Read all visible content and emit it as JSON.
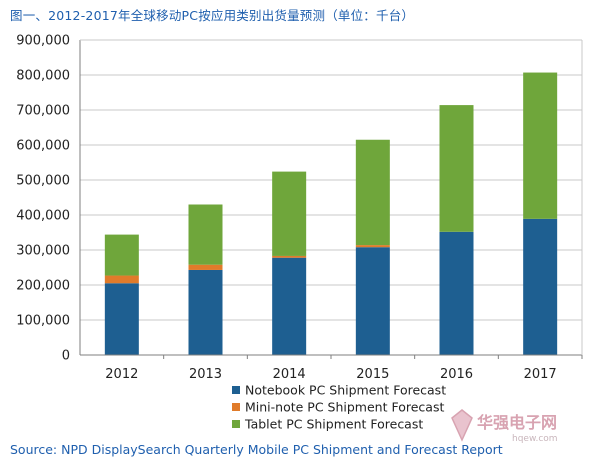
{
  "title": "图一、2012-2017年全球移动PC按应用类别出货量预测（单位：千台）",
  "source": "Source: NPD DisplaySearch Quarterly Mobile PC Shipment and Forecast Report",
  "watermark": {
    "name": "华强电子网",
    "url": "hqew.com"
  },
  "colors": {
    "notebook": "#1e5f91",
    "mininote": "#e07b2a",
    "tablet": "#6fa63b",
    "grid": "#c8c8c8",
    "axis": "#7f7f7f",
    "title": "#1f5fae"
  },
  "chart_data": {
    "type": "bar",
    "stacked": true,
    "categories": [
      "2012",
      "2013",
      "2014",
      "2015",
      "2016",
      "2017"
    ],
    "series": [
      {
        "name": "Notebook PC Shipment Forecast",
        "values": [
          205000,
          243000,
          278000,
          308000,
          352000,
          389000
        ]
      },
      {
        "name": "Mini-note PC Shipment Forecast",
        "values": [
          22000,
          15000,
          5000,
          6000,
          0,
          0
        ]
      },
      {
        "name": "Tablet PC Shipment Forecast",
        "values": [
          117000,
          172000,
          241000,
          301000,
          362000,
          418000
        ]
      }
    ],
    "y_ticks": [
      "0",
      "100,000",
      "200,000",
      "300,000",
      "400,000",
      "500,000",
      "600,000",
      "700,000",
      "800,000",
      "900,000"
    ],
    "ylim": [
      0,
      900000
    ],
    "grid": true,
    "legend_position": "bottom"
  }
}
